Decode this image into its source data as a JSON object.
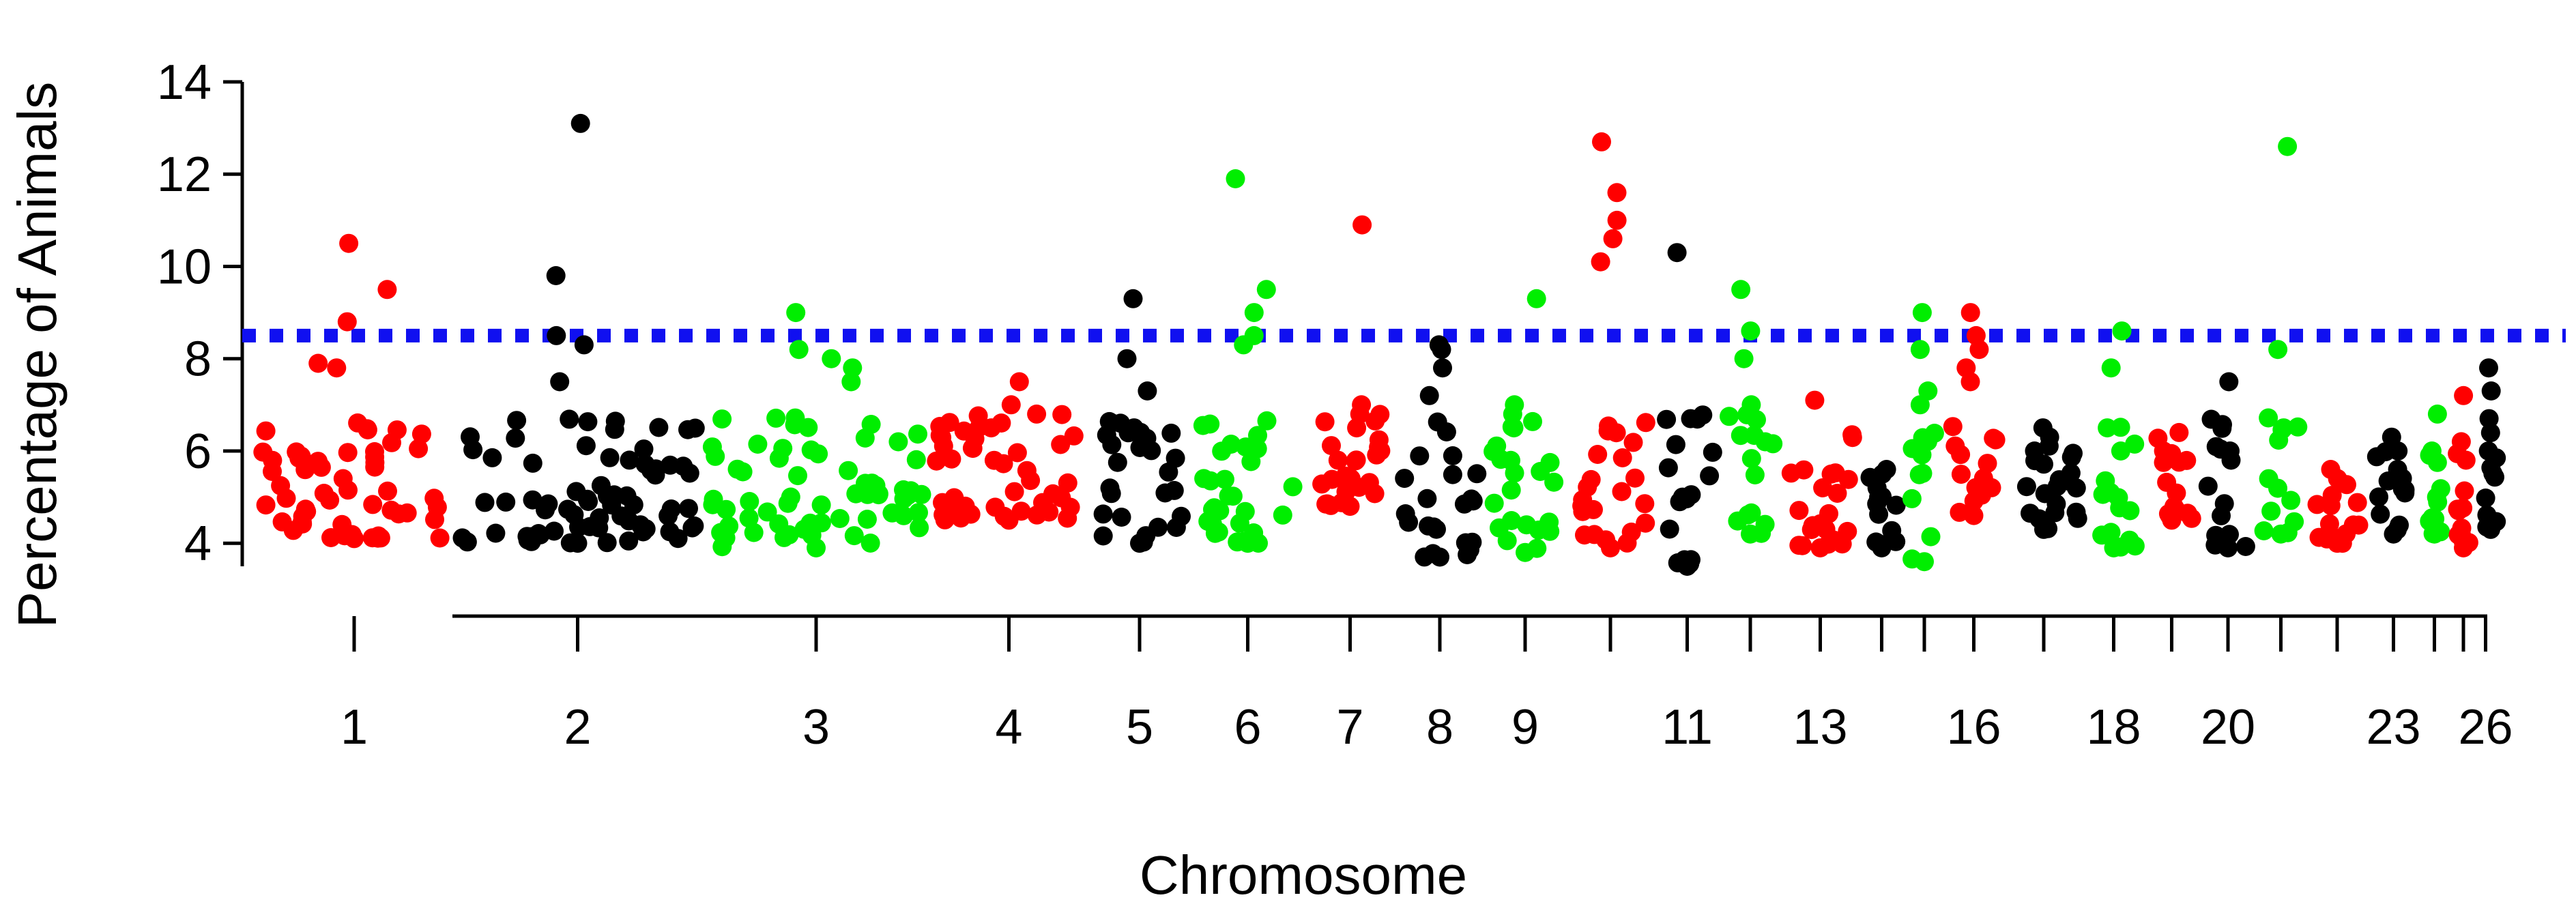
{
  "chart_data": {
    "type": "scatter",
    "title": "",
    "xlabel": "Chromosome",
    "ylabel": "Percentage of Animals",
    "ylim": [
      3.5,
      14
    ],
    "y_ticks": [
      4,
      6,
      8,
      10,
      12,
      14
    ],
    "chromosome_labels": [
      "1",
      "2",
      "3",
      "4",
      "5",
      "6",
      "7",
      "8",
      "9",
      "11",
      "13",
      "16",
      "18",
      "20",
      "23",
      "26"
    ],
    "threshold": 8.5,
    "colors": {
      "red": "#ff0000",
      "black": "#000000",
      "green": "#00ee00",
      "threshold": "#1010f0"
    },
    "chromosomes": [
      {
        "chr": 1,
        "color": "red",
        "top_values": [
          10.5,
          9.5,
          8.8,
          7.9,
          7.8
        ],
        "min": 4.1,
        "max": 10.5
      },
      {
        "chr": 2,
        "color": "black",
        "top_values": [
          13.1,
          9.8,
          8.5,
          8.3,
          7.5
        ],
        "min": 4.0,
        "max": 13.1
      },
      {
        "chr": 3,
        "color": "green",
        "top_values": [
          9.0,
          8.2,
          8.0,
          7.8,
          7.5
        ],
        "min": 3.9,
        "max": 9.0
      },
      {
        "chr": 4,
        "color": "red",
        "top_values": [
          7.5,
          7.0,
          6.8,
          6.5
        ],
        "min": 4.5,
        "max": 7.5
      },
      {
        "chr": 5,
        "color": "black",
        "top_values": [
          9.3,
          8.0,
          7.3,
          6.5
        ],
        "min": 4.0,
        "max": 9.3
      },
      {
        "chr": 6,
        "color": "green",
        "top_values": [
          11.9,
          9.5,
          9.0,
          8.5,
          8.3
        ],
        "min": 4.0,
        "max": 11.9
      },
      {
        "chr": 7,
        "color": "red",
        "top_values": [
          10.9,
          7.0,
          6.8,
          6.5
        ],
        "min": 4.8,
        "max": 10.9
      },
      {
        "chr": 8,
        "color": "black",
        "top_values": [
          8.3,
          8.2,
          7.8,
          7.2
        ],
        "min": 3.7,
        "max": 8.3
      },
      {
        "chr": 9,
        "color": "green",
        "top_values": [
          9.3,
          7.0,
          6.8,
          6.5
        ],
        "min": 3.8,
        "max": 9.3
      },
      {
        "chr": 10,
        "color": "red",
        "top_values": [
          12.7,
          11.6,
          11.0,
          10.6,
          10.1
        ],
        "min": 3.9,
        "max": 12.7
      },
      {
        "chr": 11,
        "color": "black",
        "top_values": [
          10.3,
          5.0,
          4.9
        ],
        "min": 3.5,
        "max": 10.3
      },
      {
        "chr": 12,
        "color": "green",
        "top_values": [
          9.5,
          8.6,
          8.0,
          7.0
        ],
        "min": 4.2,
        "max": 9.5
      },
      {
        "chr": 13,
        "color": "red",
        "top_values": [
          7.1,
          5.5,
          5.2
        ],
        "min": 3.9,
        "max": 7.1
      },
      {
        "chr": 14,
        "color": "black",
        "top_values": [
          5.6,
          5.2,
          5.0
        ],
        "min": 3.9,
        "max": 5.6
      },
      {
        "chr": 15,
        "color": "green",
        "top_values": [
          9.0,
          8.2,
          7.3,
          7.0
        ],
        "min": 3.6,
        "max": 9.0
      },
      {
        "chr": 16,
        "color": "red",
        "top_values": [
          9.0,
          8.5,
          8.2,
          7.8,
          7.5
        ],
        "min": 4.6,
        "max": 9.0
      },
      {
        "chr": 17,
        "color": "black",
        "top_values": [
          6.5,
          6.3,
          6.0
        ],
        "min": 4.3,
        "max": 6.5
      },
      {
        "chr": 18,
        "color": "green",
        "top_values": [
          8.6,
          7.8,
          6.5,
          6.0
        ],
        "min": 3.9,
        "max": 8.6
      },
      {
        "chr": 19,
        "color": "red",
        "top_values": [
          6.4,
          6.0,
          5.8
        ],
        "min": 4.5,
        "max": 6.4
      },
      {
        "chr": 20,
        "color": "black",
        "top_values": [
          7.5,
          6.0,
          5.8
        ],
        "min": 3.9,
        "max": 7.5
      },
      {
        "chr": 21,
        "color": "green",
        "top_values": [
          12.6,
          8.2,
          6.5
        ],
        "min": 4.2,
        "max": 12.6
      },
      {
        "chr": 22,
        "color": "red",
        "top_values": [
          5.6,
          5.4
        ],
        "min": 4.0,
        "max": 5.6
      },
      {
        "chr": 23,
        "color": "black",
        "top_values": [
          6.3,
          6.0,
          5.6
        ],
        "min": 4.2,
        "max": 6.3
      },
      {
        "chr": 24,
        "color": "green",
        "top_values": [
          6.8,
          6.0,
          5.0
        ],
        "min": 4.2,
        "max": 6.8
      },
      {
        "chr": 25,
        "color": "red",
        "top_values": [
          7.2,
          6.2,
          5.8
        ],
        "min": 3.9,
        "max": 7.2
      },
      {
        "chr": 26,
        "color": "black",
        "top_values": [
          7.8,
          7.3,
          6.7,
          6.0
        ],
        "min": 4.3,
        "max": 7.8
      }
    ]
  }
}
